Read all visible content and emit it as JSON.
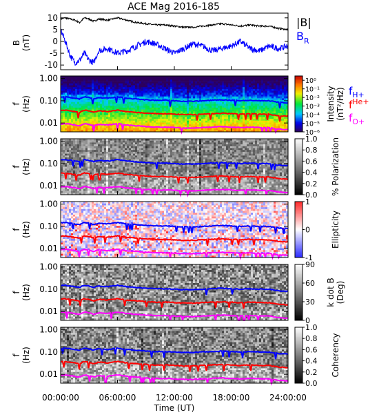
{
  "chart_data": {
    "type": "heatmap",
    "title": "ACE Mag 2016-185",
    "xlabel": "Time (UT)",
    "x_ticks": [
      "00:00:00",
      "06:00:00",
      "12:00:00",
      "18:00:00",
      "24:00:00"
    ],
    "xlim_hours": [
      0,
      24
    ],
    "line_panel": {
      "ylabel": [
        "B",
        "(nT)"
      ],
      "ylim": [
        -12,
        12
      ],
      "y_ticks": [
        "10",
        "5",
        "0",
        "-5",
        "-10"
      ],
      "legend": [
        "|B|",
        "B"
      ],
      "legend_sub": "R",
      "series": [
        {
          "name": "|B|",
          "color": "#000000",
          "x": [
            0,
            0.5,
            1,
            1.5,
            2,
            2.5,
            3,
            3.5,
            4,
            5,
            6,
            7,
            8,
            9,
            10,
            11,
            12,
            13,
            14,
            15,
            16,
            17,
            18,
            19,
            20,
            21,
            22,
            23,
            24
          ],
          "y": [
            9.5,
            10,
            9.5,
            9,
            8,
            10,
            9.5,
            8.5,
            9.5,
            9,
            10,
            9,
            8,
            7.5,
            7,
            7,
            6.5,
            6,
            6,
            6.5,
            7,
            7.5,
            7,
            6.5,
            7,
            6.5,
            6.5,
            5.5,
            5
          ]
        },
        {
          "name": "BR",
          "color": "#0000ff",
          "x": [
            0,
            0.5,
            1,
            1.5,
            2,
            2.5,
            3,
            3.5,
            4,
            5,
            6,
            7,
            8,
            9,
            10,
            11,
            12,
            13,
            14,
            15,
            16,
            17,
            18,
            19,
            20,
            21,
            22,
            23,
            24
          ],
          "y": [
            5,
            0,
            -6,
            -9,
            -8,
            -5,
            -8,
            -9,
            -4,
            -3,
            -5,
            -4,
            -2,
            0,
            -1,
            -3,
            -5,
            -3,
            -1,
            -2,
            -4,
            -3,
            -2,
            0,
            -3,
            -4,
            -2,
            -3,
            -2
          ]
        }
      ]
    },
    "spectral_panels": [
      {
        "id": "intensity",
        "colorscale": "rainbow",
        "colorbar_label": [
          "Intensity",
          "(nT²/Hz)"
        ],
        "colorbar_ticks": [
          "10⁰",
          "10⁻¹",
          "10⁻²",
          "10⁻³",
          "10⁻⁴",
          "10⁻⁵",
          "10⁻⁶"
        ],
        "colorbar_range": [
          -6,
          0.5
        ],
        "colorbar_log": true
      },
      {
        "id": "polarization",
        "colorscale": "gray",
        "colorbar_label": [
          "% Polarization"
        ],
        "colorbar_ticks": [
          "1.0",
          "0.8",
          "0.6",
          "0.4",
          "0.2",
          "0.0"
        ],
        "colorbar_range": [
          0,
          1
        ]
      },
      {
        "id": "ellipticity",
        "colorscale": "bwr",
        "colorbar_label": [
          "Ellipticity"
        ],
        "colorbar_ticks": [
          "1",
          "0",
          "-1"
        ],
        "colorbar_range": [
          -1,
          1
        ]
      },
      {
        "id": "kdotb",
        "colorscale": "gray",
        "colorbar_label": [
          "k dot B",
          "(Deg)"
        ],
        "colorbar_ticks": [
          "90",
          "60",
          "30",
          "0"
        ],
        "colorbar_range": [
          0,
          90
        ]
      },
      {
        "id": "coherency",
        "colorscale": "gray",
        "colorbar_label": [
          "Coherency"
        ],
        "colorbar_ticks": [
          "1.0",
          "0.8",
          "0.6",
          "0.4",
          "0.2",
          "0.0"
        ],
        "colorbar_range": [
          0,
          1
        ]
      }
    ],
    "spectral_ylabel": [
      "f",
      "(Hz)"
    ],
    "freq_ticks": [
      {
        "label": "1.00",
        "value": 1.0
      },
      {
        "label": "0.10",
        "value": 0.1
      },
      {
        "label": "0.01",
        "value": 0.01
      }
    ],
    "freq_range_hz": [
      0.004,
      1.3
    ],
    "gyrofrequency_lines": {
      "legend": [
        {
          "base": "f",
          "sub": "H+",
          "color": "#0000ff"
        },
        {
          "base": "f",
          "sub": "He+",
          "color": "#ff0000"
        },
        {
          "base": "f",
          "sub": "O+",
          "color": "#ff00ff"
        }
      ],
      "x": [
        0,
        0.5,
        1,
        1.5,
        2,
        2.5,
        3,
        3.5,
        4,
        5,
        6,
        7,
        8,
        9,
        10,
        11,
        12,
        13,
        14,
        15,
        16,
        17,
        18,
        19,
        20,
        21,
        22,
        23,
        24
      ],
      "fH_hz": [
        0.145,
        0.15,
        0.14,
        0.13,
        0.12,
        0.15,
        0.14,
        0.12,
        0.14,
        0.13,
        0.15,
        0.13,
        0.12,
        0.11,
        0.105,
        0.105,
        0.1,
        0.095,
        0.095,
        0.1,
        0.105,
        0.11,
        0.105,
        0.1,
        0.105,
        0.1,
        0.1,
        0.085,
        0.08
      ]
    }
  }
}
